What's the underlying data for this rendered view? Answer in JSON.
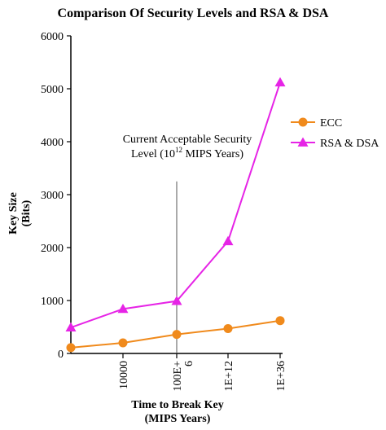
{
  "chart_data": {
    "type": "line",
    "title": "Comparison Of Security Levels and RSA & DSA",
    "xlabel": [
      "Time to Break Key",
      "(MIPS Years)"
    ],
    "ylabel": [
      "Key Size",
      "(Bits)"
    ],
    "categories": [
      {
        "label": [
          "",
          ""
        ]
      },
      {
        "label": [
          "10000",
          ""
        ]
      },
      {
        "label": [
          "100E+",
          "6"
        ]
      },
      {
        "label": [
          "1E+12",
          ""
        ]
      },
      {
        "label": [
          "1E+36",
          ""
        ]
      }
    ],
    "yticks": [
      "0",
      "1000",
      "2000",
      "3000",
      "4000",
      "5000",
      "6000"
    ],
    "ylim": [
      0,
      6000
    ],
    "grid": false,
    "legend_position": "right",
    "series": [
      {
        "name": "ECC",
        "color": "#f08a1c",
        "marker": "circle",
        "values": [
          110,
          200,
          360,
          470,
          620
        ]
      },
      {
        "name": "RSA & DSA",
        "color": "#e624e6",
        "marker": "triangle",
        "values": [
          490,
          840,
          990,
          2120,
          5120
        ]
      }
    ],
    "annotation": {
      "line1": "Current Acceptable Security",
      "line2_prefix": "Level (10",
      "line2_sup": "12",
      "line2_suffix": " MIPS Years)",
      "at_category": 2,
      "y_top": 3250
    }
  }
}
